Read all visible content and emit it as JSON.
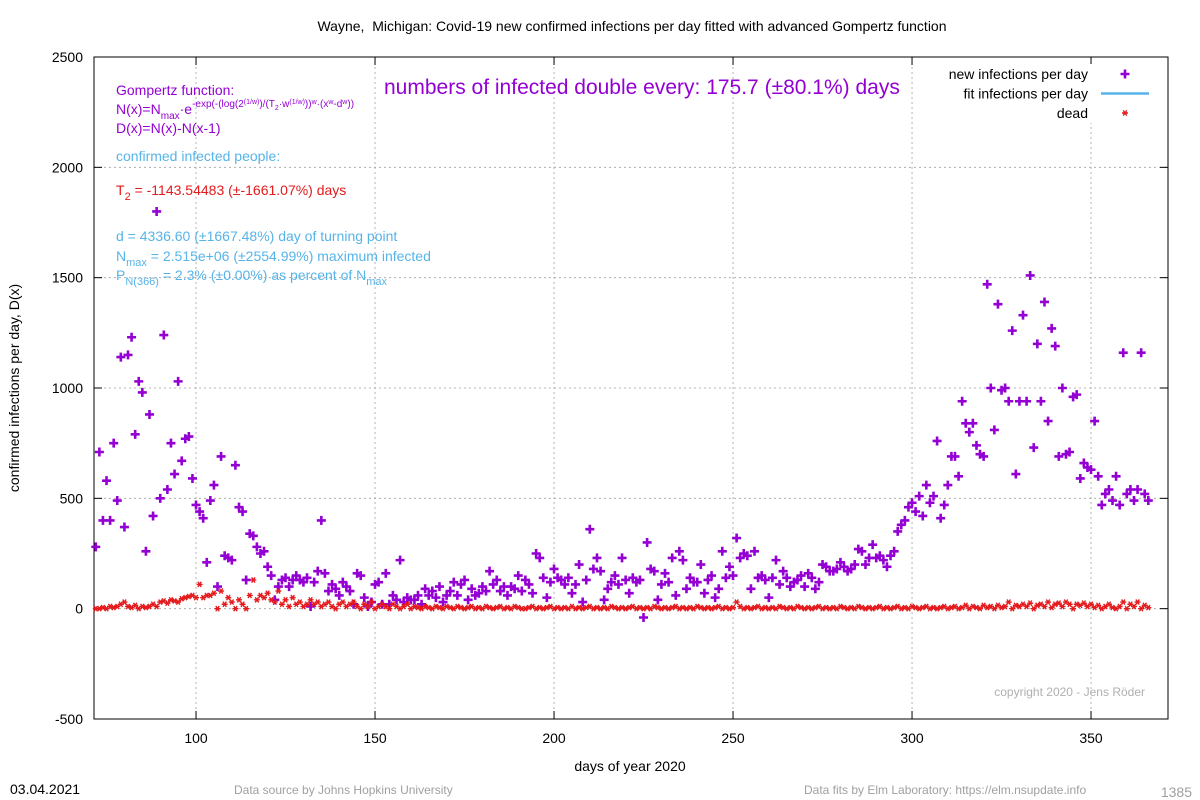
{
  "chart_data": {
    "type": "scatter",
    "title": "Wayne,  Michigan: Covid-19 new confirmed infections per day fitted with advanced Gompertz function",
    "xlabel": "days of year 2020",
    "ylabel": "confirmed infections per day, D(x)",
    "xlim": [
      71.5,
      371.5
    ],
    "ylim": [
      -500,
      2500
    ],
    "xticks": [
      100,
      150,
      200,
      250,
      300,
      350
    ],
    "yticks": [
      -500,
      0,
      500,
      1000,
      1500,
      2000,
      2500
    ],
    "grid": true,
    "legend": "top-right",
    "x": [
      72,
      73,
      74,
      75,
      76,
      77,
      78,
      79,
      80,
      81,
      82,
      83,
      84,
      85,
      86,
      87,
      88,
      89,
      90,
      91,
      92,
      93,
      94,
      95,
      96,
      97,
      98,
      99,
      100,
      101,
      102,
      103,
      104,
      105,
      106,
      107,
      108,
      109,
      110,
      111,
      112,
      113,
      114,
      115,
      116,
      117,
      118,
      119,
      120,
      121,
      122,
      123,
      124,
      125,
      126,
      127,
      128,
      129,
      130,
      131,
      132,
      133,
      134,
      135,
      136,
      137,
      138,
      139,
      140,
      141,
      142,
      143,
      144,
      145,
      146,
      147,
      148,
      149,
      150,
      151,
      152,
      153,
      154,
      155,
      156,
      157,
      158,
      159,
      160,
      161,
      162,
      163,
      164,
      165,
      166,
      167,
      168,
      169,
      170,
      171,
      172,
      173,
      174,
      175,
      176,
      177,
      178,
      179,
      180,
      181,
      182,
      183,
      184,
      185,
      186,
      187,
      188,
      189,
      190,
      191,
      192,
      193,
      194,
      195,
      196,
      197,
      198,
      199,
      200,
      201,
      202,
      203,
      204,
      205,
      206,
      207,
      208,
      209,
      210,
      211,
      212,
      213,
      214,
      215,
      216,
      217,
      218,
      219,
      220,
      221,
      222,
      223,
      224,
      225,
      226,
      227,
      228,
      229,
      230,
      231,
      232,
      233,
      234,
      235,
      236,
      237,
      238,
      239,
      240,
      241,
      242,
      243,
      244,
      245,
      246,
      247,
      248,
      249,
      250,
      251,
      252,
      253,
      254,
      255,
      256,
      257,
      258,
      259,
      260,
      261,
      262,
      263,
      264,
      265,
      266,
      267,
      268,
      269,
      270,
      271,
      272,
      273,
      274,
      275,
      276,
      277,
      278,
      279,
      280,
      281,
      282,
      283,
      284,
      285,
      286,
      287,
      288,
      289,
      290,
      291,
      292,
      293,
      294,
      295,
      296,
      297,
      298,
      299,
      300,
      301,
      302,
      303,
      304,
      305,
      306,
      307,
      308,
      309,
      310,
      311,
      312,
      313,
      314,
      315,
      316,
      317,
      318,
      319,
      320,
      321,
      322,
      323,
      324,
      325,
      326,
      327,
      328,
      329,
      330,
      331,
      332,
      333,
      334,
      335,
      336,
      337,
      338,
      339,
      340,
      341,
      342,
      343,
      344,
      345,
      346,
      347,
      348,
      349,
      350,
      351,
      352,
      353,
      354,
      355,
      356,
      357,
      358,
      359,
      360,
      361,
      362,
      363,
      364,
      365,
      366
    ],
    "series": [
      {
        "name": "new infections per day",
        "color": "#9400d3",
        "marker": "plus",
        "values": [
          280,
          710,
          400,
          580,
          400,
          750,
          490,
          1140,
          370,
          1150,
          1230,
          790,
          1030,
          980,
          260,
          880,
          420,
          1800,
          500,
          1240,
          540,
          750,
          610,
          1030,
          670,
          770,
          780,
          590,
          470,
          440,
          410,
          210,
          490,
          560,
          100,
          690,
          240,
          230,
          220,
          650,
          460,
          440,
          130,
          340,
          330,
          280,
          250,
          260,
          190,
          150,
          40,
          100,
          130,
          140,
          100,
          130,
          150,
          130,
          120,
          140,
          10,
          120,
          170,
          400,
          160,
          80,
          110,
          90,
          60,
          120,
          100,
          80,
          20,
          160,
          150,
          50,
          10,
          30,
          110,
          120,
          20,
          160,
          20,
          60,
          40,
          220,
          30,
          50,
          40,
          40,
          60,
          20,
          90,
          60,
          80,
          50,
          100,
          30,
          60,
          80,
          120,
          60,
          110,
          130,
          40,
          90,
          60,
          70,
          100,
          80,
          170,
          110,
          130,
          80,
          100,
          60,
          100,
          90,
          150,
          80,
          130,
          110,
          70,
          250,
          230,
          140,
          50,
          120,
          180,
          140,
          130,
          110,
          140,
          70,
          110,
          200,
          30,
          130,
          360,
          180,
          230,
          170,
          40,
          90,
          120,
          150,
          110,
          230,
          130,
          70,
          140,
          120,
          130,
          -40,
          300,
          180,
          170,
          40,
          110,
          160,
          120,
          230,
          60,
          260,
          220,
          90,
          140,
          120,
          120,
          200,
          70,
          130,
          150,
          50,
          90,
          260,
          140,
          190,
          150,
          320,
          230,
          250,
          240,
          90,
          260,
          140,
          150,
          130,
          50,
          140,
          220,
          110,
          170,
          140,
          100,
          120,
          130,
          150,
          100,
          160,
          140,
          90,
          120,
          200,
          190,
          170,
          170,
          180,
          210,
          190,
          170,
          180,
          200,
          270,
          260,
          200,
          230,
          290,
          230,
          240,
          220,
          190,
          240,
          260,
          350,
          380,
          400,
          460,
          480,
          440,
          510,
          420,
          560,
          480,
          510,
          760,
          410,
          470,
          560,
          690,
          690,
          600,
          940,
          840,
          800,
          840,
          740,
          700,
          690,
          1470,
          1000,
          810,
          1380,
          990,
          1000,
          940,
          1260,
          610,
          940,
          1330,
          940,
          1510,
          730,
          1200,
          940,
          1390,
          850,
          1270,
          1190,
          690,
          1000,
          700,
          710,
          960,
          970,
          590,
          660,
          640,
          630,
          850,
          600,
          470,
          520,
          540,
          490,
          600,
          470,
          1160,
          520,
          540,
          490,
          540,
          1160,
          520,
          490
        ]
      },
      {
        "name": "fit infections per day",
        "color": "#56b4e9",
        "marker": "line"
      },
      {
        "name": "dead",
        "color": "#e41a1c",
        "marker": "star",
        "values": [
          0,
          0,
          5,
          0,
          10,
          5,
          10,
          20,
          30,
          10,
          5,
          15,
          0,
          10,
          5,
          10,
          20,
          10,
          30,
          35,
          25,
          40,
          35,
          30,
          45,
          50,
          55,
          60,
          50,
          110,
          50,
          60,
          60,
          70,
          0,
          80,
          20,
          50,
          30,
          0,
          40,
          20,
          0,
          60,
          130,
          40,
          60,
          50,
          70,
          40,
          30,
          80,
          20,
          40,
          10,
          50,
          20,
          30,
          10,
          20,
          40,
          20,
          30,
          10,
          20,
          30,
          10,
          0,
          20,
          30,
          10,
          20,
          30,
          10,
          0,
          20,
          10,
          30,
          0,
          10,
          20,
          10,
          0,
          20,
          10,
          0,
          10,
          20,
          0,
          10,
          5,
          0,
          10,
          5,
          0,
          10,
          5,
          0,
          10,
          5,
          0,
          10,
          5,
          0,
          5,
          10,
          0,
          5,
          0,
          10,
          5,
          0,
          5,
          10,
          0,
          5,
          0,
          10,
          5,
          0,
          0,
          5,
          10,
          0,
          5,
          0,
          5,
          10,
          0,
          5,
          0,
          5,
          0,
          10,
          0,
          5,
          0,
          5,
          10,
          0,
          5,
          0,
          5,
          0,
          10,
          5,
          0,
          5,
          0,
          5,
          10,
          0,
          5,
          0,
          5,
          0,
          10,
          5,
          0,
          5,
          0,
          5,
          10,
          0,
          5,
          0,
          5,
          0,
          10,
          5,
          0,
          5,
          0,
          5,
          10,
          0,
          5,
          0,
          5,
          30,
          10,
          0,
          5,
          0,
          5,
          10,
          0,
          5,
          0,
          5,
          0,
          10,
          5,
          0,
          5,
          0,
          10,
          5,
          0,
          5,
          0,
          5,
          10,
          0,
          5,
          0,
          5,
          0,
          10,
          5,
          0,
          5,
          0,
          10,
          5,
          0,
          5,
          0,
          5,
          10,
          0,
          5,
          0,
          5,
          10,
          0,
          5,
          0,
          10,
          5,
          0,
          5,
          10,
          0,
          5,
          0,
          5,
          10,
          0,
          5,
          10,
          0,
          5,
          15,
          0,
          10,
          5,
          0,
          15,
          5,
          10,
          0,
          15,
          5,
          10,
          30,
          0,
          15,
          10,
          20,
          10,
          25,
          0,
          15,
          20,
          10,
          30,
          5,
          20,
          25,
          10,
          30,
          20,
          0,
          20,
          15,
          25,
          10,
          20,
          5,
          15,
          0,
          10,
          20,
          5,
          0,
          10,
          30,
          0,
          20,
          10,
          30,
          0,
          15,
          5
        ]
      }
    ],
    "annotations": {
      "formula_title": "Gompertz function:",
      "formula_n": [
        "N(x)=N",
        "max",
        "·e",
        "-exp(-(log(2",
        "(1/w)",
        ")/(T",
        "2",
        "·w",
        "(1/w)",
        "))",
        "w",
        "·(x",
        "w",
        "-d",
        "w",
        "))"
      ],
      "formula_d": "D(x)=N(x)-N(x-1)",
      "confirmed": "confirmed infected people:",
      "t2": [
        "T",
        "2",
        " = -1143.54483 (±-1661.07%) days"
      ],
      "d": "d = 4336.60 (±1667.48%) day of turning point",
      "nmax": [
        "N",
        "max",
        " = 2.515e+06 (±2554.99%) maximum infected"
      ],
      "p": [
        "P",
        "N(366)",
        " = 2.3% (±0.00%) as percent of N",
        "max"
      ],
      "doubling": "numbers of infected double every: 175.7 (±80.1%) days",
      "copyright": "copyright 2020 - Jens Röder"
    },
    "footer": {
      "date": "03.04.2021",
      "source": "Data source by Johns Hopkins University",
      "fits": "Data fits by Elm Laboratory: https://elm.nsupdate.info",
      "number": "1385"
    }
  }
}
